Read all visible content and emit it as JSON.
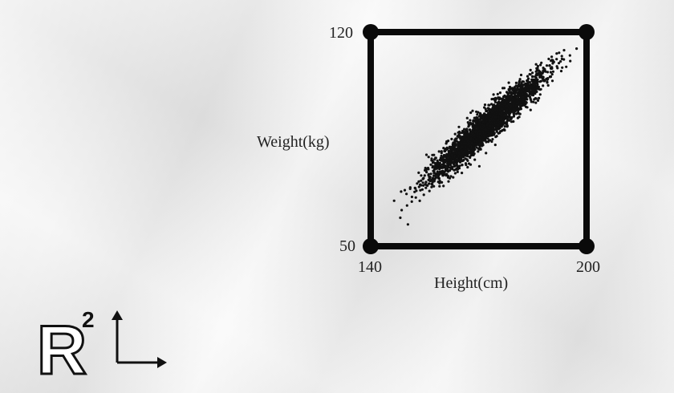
{
  "chart_data": {
    "type": "scatter",
    "title": "",
    "xlabel": "Height(cm)",
    "ylabel": "Weight(kg)",
    "xlim": [
      140,
      200
    ],
    "ylim": [
      50,
      120
    ],
    "x_tick_labels": [
      "140",
      "200"
    ],
    "y_tick_labels": [
      "50",
      "120"
    ],
    "grid": false,
    "legend": "none",
    "series": [
      {
        "distribution": "bivariate normal, strong positive correlation",
        "x_mean": 172,
        "y_mean": 89,
        "x_sd": 8,
        "y_sd": 8.7,
        "correlation": 0.95,
        "x_range": [
          143,
          198
        ],
        "y_range": [
          55,
          115
        ],
        "color": "#111111"
      }
    ]
  },
  "logo": {
    "letter": "R",
    "exponent": "2"
  },
  "colors": {
    "frame": "#0a0a0a",
    "points": "#111111",
    "text": "#222222",
    "background": "#ececec"
  }
}
